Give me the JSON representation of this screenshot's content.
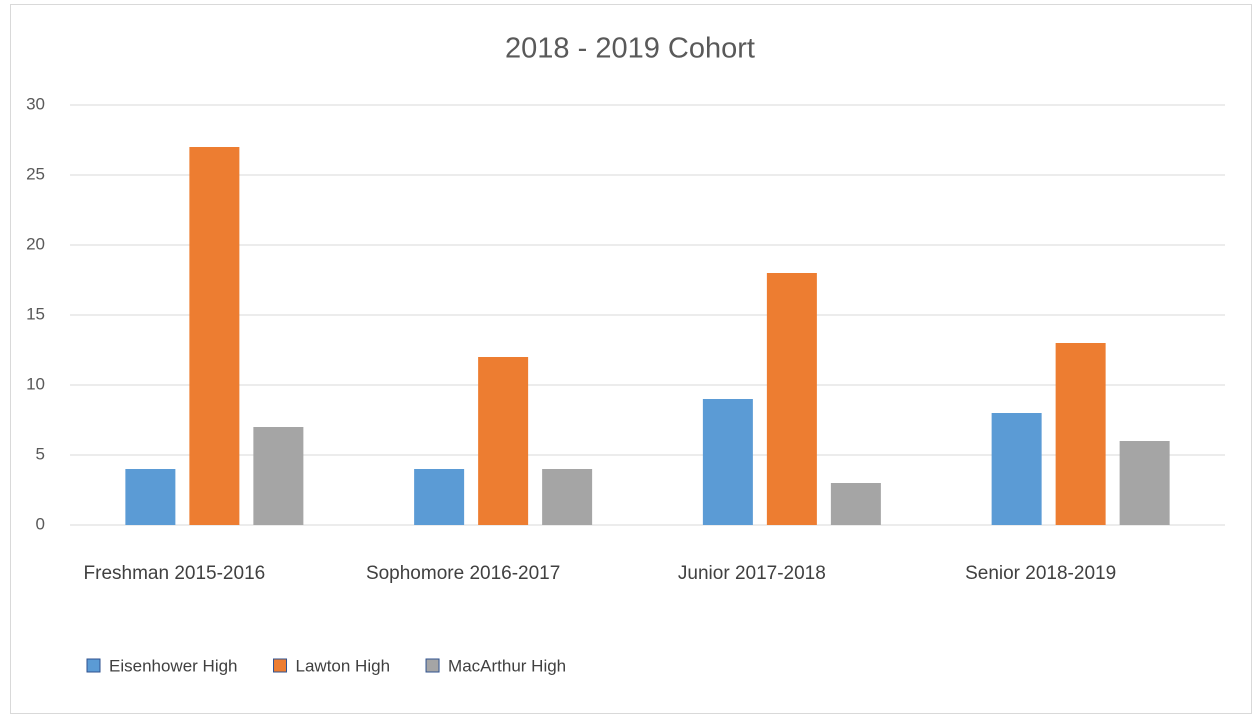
{
  "chart_data": {
    "type": "bar",
    "title": "2018 - 2019 Cohort",
    "categories": [
      "Freshman 2015-2016",
      "Sophomore 2016-2017",
      "Junior 2017-2018",
      "Senior 2018-2019"
    ],
    "series": [
      {
        "name": "Eisenhower High",
        "color": "#5b9bd5",
        "values": [
          4,
          4,
          9,
          8
        ]
      },
      {
        "name": "Lawton High",
        "color": "#ed7d31",
        "values": [
          27,
          12,
          18,
          13
        ]
      },
      {
        "name": "MacArthur High",
        "color": "#a5a5a5",
        "values": [
          7,
          4,
          3,
          6
        ]
      }
    ],
    "ylim": [
      0,
      30
    ],
    "yticks": [
      0,
      5,
      10,
      15,
      20,
      25,
      30
    ],
    "grid": true,
    "legend": "bottom"
  }
}
